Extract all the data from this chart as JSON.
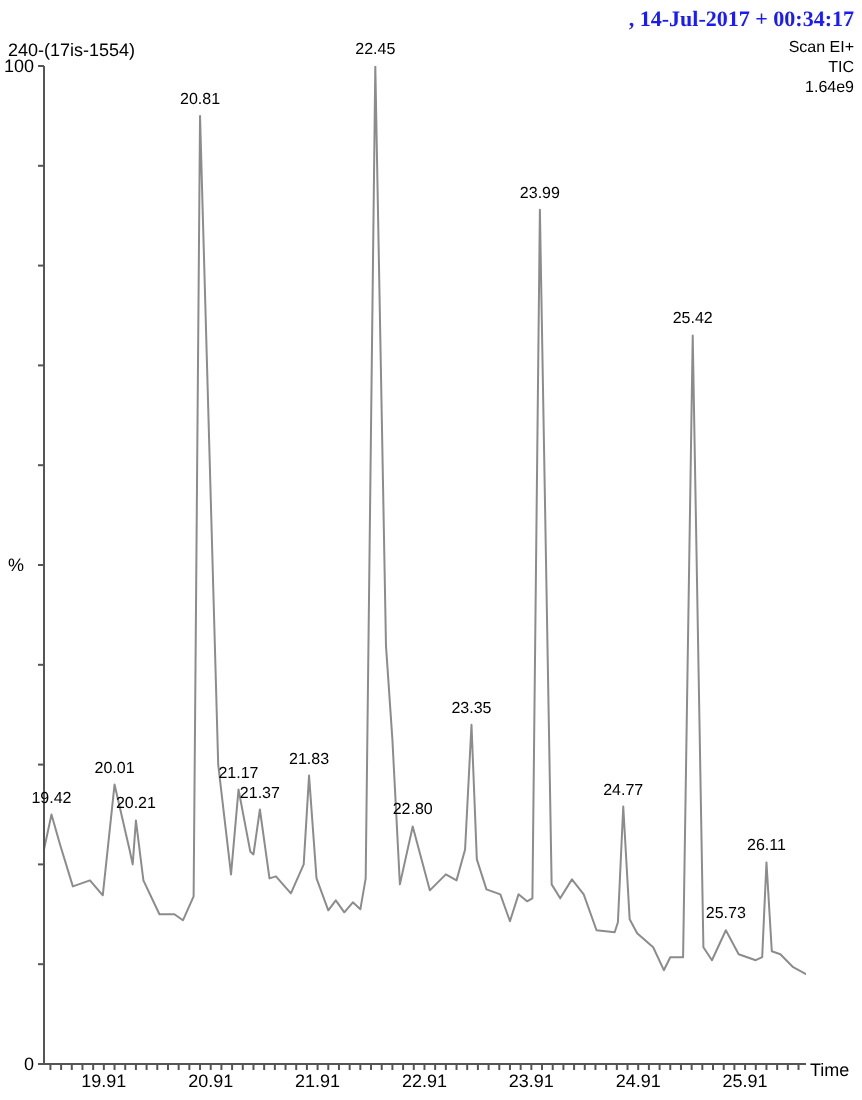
{
  "chart_data": {
    "type": "line",
    "title": "240-(17is-1554)",
    "subtitle": ", 14-Jul-2017 + 00:34:17",
    "xlabel": "Time",
    "ylabel": "%",
    "annotations": [
      "Scan EI+",
      "TIC",
      "1.64e9",
      {
        "text": "19.42",
        "x": 19.42,
        "y": 25
      },
      {
        "text": "20.01",
        "x": 20.01,
        "y": 28
      },
      {
        "text": "20.21",
        "x": 20.21,
        "y": 24.4
      },
      {
        "text": "20.81",
        "x": 20.81,
        "y": 95
      },
      {
        "text": "21.17",
        "x": 21.17,
        "y": 27.5
      },
      {
        "text": "21.37",
        "x": 21.37,
        "y": 25.5
      },
      {
        "text": "21.83",
        "x": 21.83,
        "y": 28.9
      },
      {
        "text": "22.45",
        "x": 22.45,
        "y": 100
      },
      {
        "text": "22.80",
        "x": 22.8,
        "y": 23.8
      },
      {
        "text": "23.35",
        "x": 23.35,
        "y": 34
      },
      {
        "text": "23.99",
        "x": 23.99,
        "y": 85.6
      },
      {
        "text": "24.77",
        "x": 24.77,
        "y": 25.8
      },
      {
        "text": "25.42",
        "x": 25.42,
        "y": 73
      },
      {
        "text": "25.73",
        "x": 25.73,
        "y": 13.4
      },
      {
        "text": "26.11",
        "x": 26.11,
        "y": 20.2
      }
    ],
    "x": [
      19.35,
      19.42,
      19.5,
      19.62,
      19.78,
      19.9,
      20.01,
      20.15,
      20.18,
      20.21,
      20.28,
      20.43,
      20.57,
      20.65,
      20.75,
      20.81,
      20.98,
      21.1,
      21.17,
      21.28,
      21.31,
      21.37,
      21.46,
      21.52,
      21.66,
      21.78,
      21.83,
      21.9,
      22.01,
      22.08,
      22.16,
      22.24,
      22.31,
      22.36,
      22.45,
      22.55,
      22.61,
      22.68,
      22.8,
      22.96,
      23.11,
      23.21,
      23.29,
      23.35,
      23.4,
      23.49,
      23.62,
      23.71,
      23.79,
      23.87,
      23.92,
      23.99,
      24.1,
      24.18,
      24.29,
      24.4,
      24.52,
      24.69,
      24.72,
      24.77,
      24.83,
      24.9,
      25.05,
      25.15,
      25.21,
      25.33,
      25.42,
      25.52,
      25.6,
      25.73,
      25.85,
      26.01,
      26.07,
      26.11,
      26.16,
      26.24,
      26.36,
      26.48
    ],
    "series": [
      {
        "color": "#8c8c8c",
        "values": [
          21.5,
          25,
          22,
          17.8,
          18.4,
          16.9,
          28,
          21.5,
          20,
          24.4,
          18.4,
          15,
          15,
          14.4,
          16.8,
          95,
          30,
          19,
          27.5,
          21.3,
          21,
          25.5,
          18.6,
          18.8,
          17.1,
          20,
          28.9,
          18.6,
          15.4,
          16.4,
          15.2,
          16.2,
          15.5,
          18.6,
          100,
          41.9,
          32.5,
          18,
          23.8,
          17.4,
          19,
          18.4,
          21.5,
          34,
          20.5,
          17.5,
          17,
          14.3,
          17,
          16.3,
          16.6,
          85.6,
          18,
          16.6,
          18.5,
          17,
          13.4,
          13.2,
          14.2,
          25.8,
          14.5,
          13.1,
          11.7,
          9.4,
          10.7,
          10.7,
          73,
          11.7,
          10.4,
          13.4,
          11,
          10.4,
          10.7,
          20.2,
          11.3,
          11,
          9.7,
          9
        ]
      }
    ],
    "xlim": [
      19.35,
      26.48
    ],
    "xticks": [
      {
        "value": 19.41,
        "label": null
      },
      {
        "value": 19.51,
        "label": null
      },
      {
        "value": 19.61,
        "label": null
      },
      {
        "value": 19.71,
        "label": null
      },
      {
        "value": 19.81,
        "label": null
      },
      19.91,
      {
        "value": 20.01,
        "label": null
      },
      {
        "value": 20.11,
        "label": null
      },
      {
        "value": 20.21,
        "label": null
      },
      {
        "value": 20.31,
        "label": null
      },
      {
        "value": 20.41,
        "label": null
      },
      {
        "value": 20.51,
        "label": null
      },
      {
        "value": 20.61,
        "label": null
      },
      {
        "value": 20.71,
        "label": null
      },
      {
        "value": 20.81,
        "label": null
      },
      20.91,
      {
        "value": 21.01,
        "label": null
      },
      {
        "value": 21.11,
        "label": null
      },
      {
        "value": 21.21,
        "label": null
      },
      {
        "value": 21.31,
        "label": null
      },
      {
        "value": 21.41,
        "label": null
      },
      {
        "value": 21.51,
        "label": null
      },
      {
        "value": 21.61,
        "label": null
      },
      {
        "value": 21.71,
        "label": null
      },
      {
        "value": 21.81,
        "label": null
      },
      21.91,
      {
        "value": 22.01,
        "label": null
      },
      {
        "value": 22.11,
        "label": null
      },
      {
        "value": 22.21,
        "label": null
      },
      {
        "value": 22.31,
        "label": null
      },
      {
        "value": 22.41,
        "label": null
      },
      {
        "value": 22.51,
        "label": null
      },
      {
        "value": 22.61,
        "label": null
      },
      {
        "value": 22.71,
        "label": null
      },
      {
        "value": 22.81,
        "label": null
      },
      22.91,
      {
        "value": 23.01,
        "label": null
      },
      {
        "value": 23.11,
        "label": null
      },
      {
        "value": 23.21,
        "label": null
      },
      {
        "value": 23.31,
        "label": null
      },
      {
        "value": 23.41,
        "label": null
      },
      {
        "value": 23.51,
        "label": null
      },
      {
        "value": 23.61,
        "label": null
      },
      {
        "value": 23.71,
        "label": null
      },
      {
        "value": 23.81,
        "label": null
      },
      23.91,
      {
        "value": 24.01,
        "label": null
      },
      {
        "value": 24.11,
        "label": null
      },
      {
        "value": 24.21,
        "label": null
      },
      {
        "value": 24.31,
        "label": null
      },
      {
        "value": 24.41,
        "label": null
      },
      {
        "value": 24.51,
        "label": null
      },
      {
        "value": 24.61,
        "label": null
      },
      {
        "value": 24.71,
        "label": null
      },
      {
        "value": 24.81,
        "label": null
      },
      24.91,
      {
        "value": 25.01,
        "label": null
      },
      {
        "value": 25.11,
        "label": null
      },
      {
        "value": 25.21,
        "label": null
      },
      {
        "value": 25.31,
        "label": null
      },
      {
        "value": 25.41,
        "label": null
      },
      {
        "value": 25.51,
        "label": null
      },
      {
        "value": 25.61,
        "label": null
      },
      {
        "value": 25.71,
        "label": null
      },
      {
        "value": 25.81,
        "label": null
      },
      25.91,
      {
        "value": 26.01,
        "label": null
      },
      {
        "value": 26.11,
        "label": null
      },
      {
        "value": 26.21,
        "label": null
      },
      {
        "value": 26.31,
        "label": null
      },
      {
        "value": 26.41,
        "label": null
      }
    ],
    "ylim": [
      0,
      100
    ],
    "yticks": [
      0,
      {
        "value": 10,
        "label": null
      },
      {
        "value": 20,
        "label": null
      },
      {
        "value": 30,
        "label": null
      },
      {
        "value": 40,
        "label": null
      },
      {
        "value": 50,
        "label": null
      },
      {
        "value": 60,
        "label": null
      },
      {
        "value": 70,
        "label": null
      },
      {
        "value": 80,
        "label": null
      },
      {
        "value": 90,
        "label": null
      },
      100
    ],
    "grid": false,
    "legend": false,
    "marker": "none",
    "line_style": "solid"
  }
}
